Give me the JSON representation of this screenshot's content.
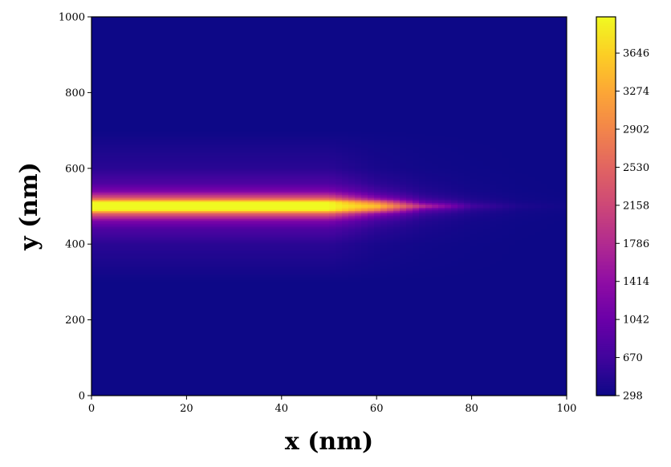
{
  "chart_data": {
    "type": "heatmap",
    "title": "",
    "xlabel": "x (nm)",
    "ylabel": "y (nm)",
    "xlim": [
      0,
      100
    ],
    "ylim": [
      0,
      1000
    ],
    "x_ticks": [
      0,
      20,
      40,
      60,
      80,
      100
    ],
    "x_tick_labels": [
      "0",
      "20",
      "40",
      "60",
      "80",
      "100"
    ],
    "y_ticks": [
      0,
      200,
      400,
      600,
      800,
      1000
    ],
    "y_tick_labels": [
      "0",
      "200",
      "400",
      "600",
      "800",
      "1000"
    ],
    "colormap": "plasma",
    "colorbar": {
      "vmin": 298,
      "vmax": 4000,
      "ticks": [
        298,
        670,
        1042,
        1414,
        1786,
        2158,
        2530,
        2902,
        3274,
        3646
      ],
      "tick_labels": [
        "298",
        "670",
        "1042",
        "1414",
        "1786",
        "2158",
        "2530",
        "2902",
        "3274",
        "3646"
      ]
    },
    "x": [
      0,
      50,
      60,
      70,
      80,
      90,
      100
    ],
    "y": [
      300,
      400,
      440,
      460,
      470,
      480,
      490,
      500,
      510,
      520,
      530,
      540,
      560,
      600,
      700
    ],
    "z": [
      [
        298,
        298,
        298,
        298,
        298,
        298,
        298
      ],
      [
        500,
        500,
        380,
        330,
        310,
        300,
        298
      ],
      [
        780,
        780,
        520,
        390,
        330,
        305,
        298
      ],
      [
        1200,
        1200,
        700,
        450,
        350,
        310,
        298
      ],
      [
        1800,
        1800,
        950,
        520,
        380,
        320,
        300
      ],
      [
        2500,
        2500,
        1400,
        650,
        420,
        330,
        305
      ],
      [
        4000,
        4000,
        2800,
        1000,
        520,
        360,
        315
      ],
      [
        4000,
        4000,
        3600,
        1900,
        700,
        420,
        330
      ],
      [
        4000,
        4000,
        2800,
        1000,
        520,
        360,
        315
      ],
      [
        2500,
        2500,
        1400,
        650,
        420,
        330,
        305
      ],
      [
        1800,
        1800,
        950,
        520,
        380,
        320,
        300
      ],
      [
        1200,
        1200,
        700,
        450,
        350,
        310,
        298
      ],
      [
        780,
        780,
        520,
        390,
        330,
        305,
        298
      ],
      [
        500,
        500,
        380,
        330,
        310,
        300,
        298
      ],
      [
        298,
        298,
        298,
        298,
        298,
        298,
        298
      ]
    ],
    "background_value": 298
  }
}
